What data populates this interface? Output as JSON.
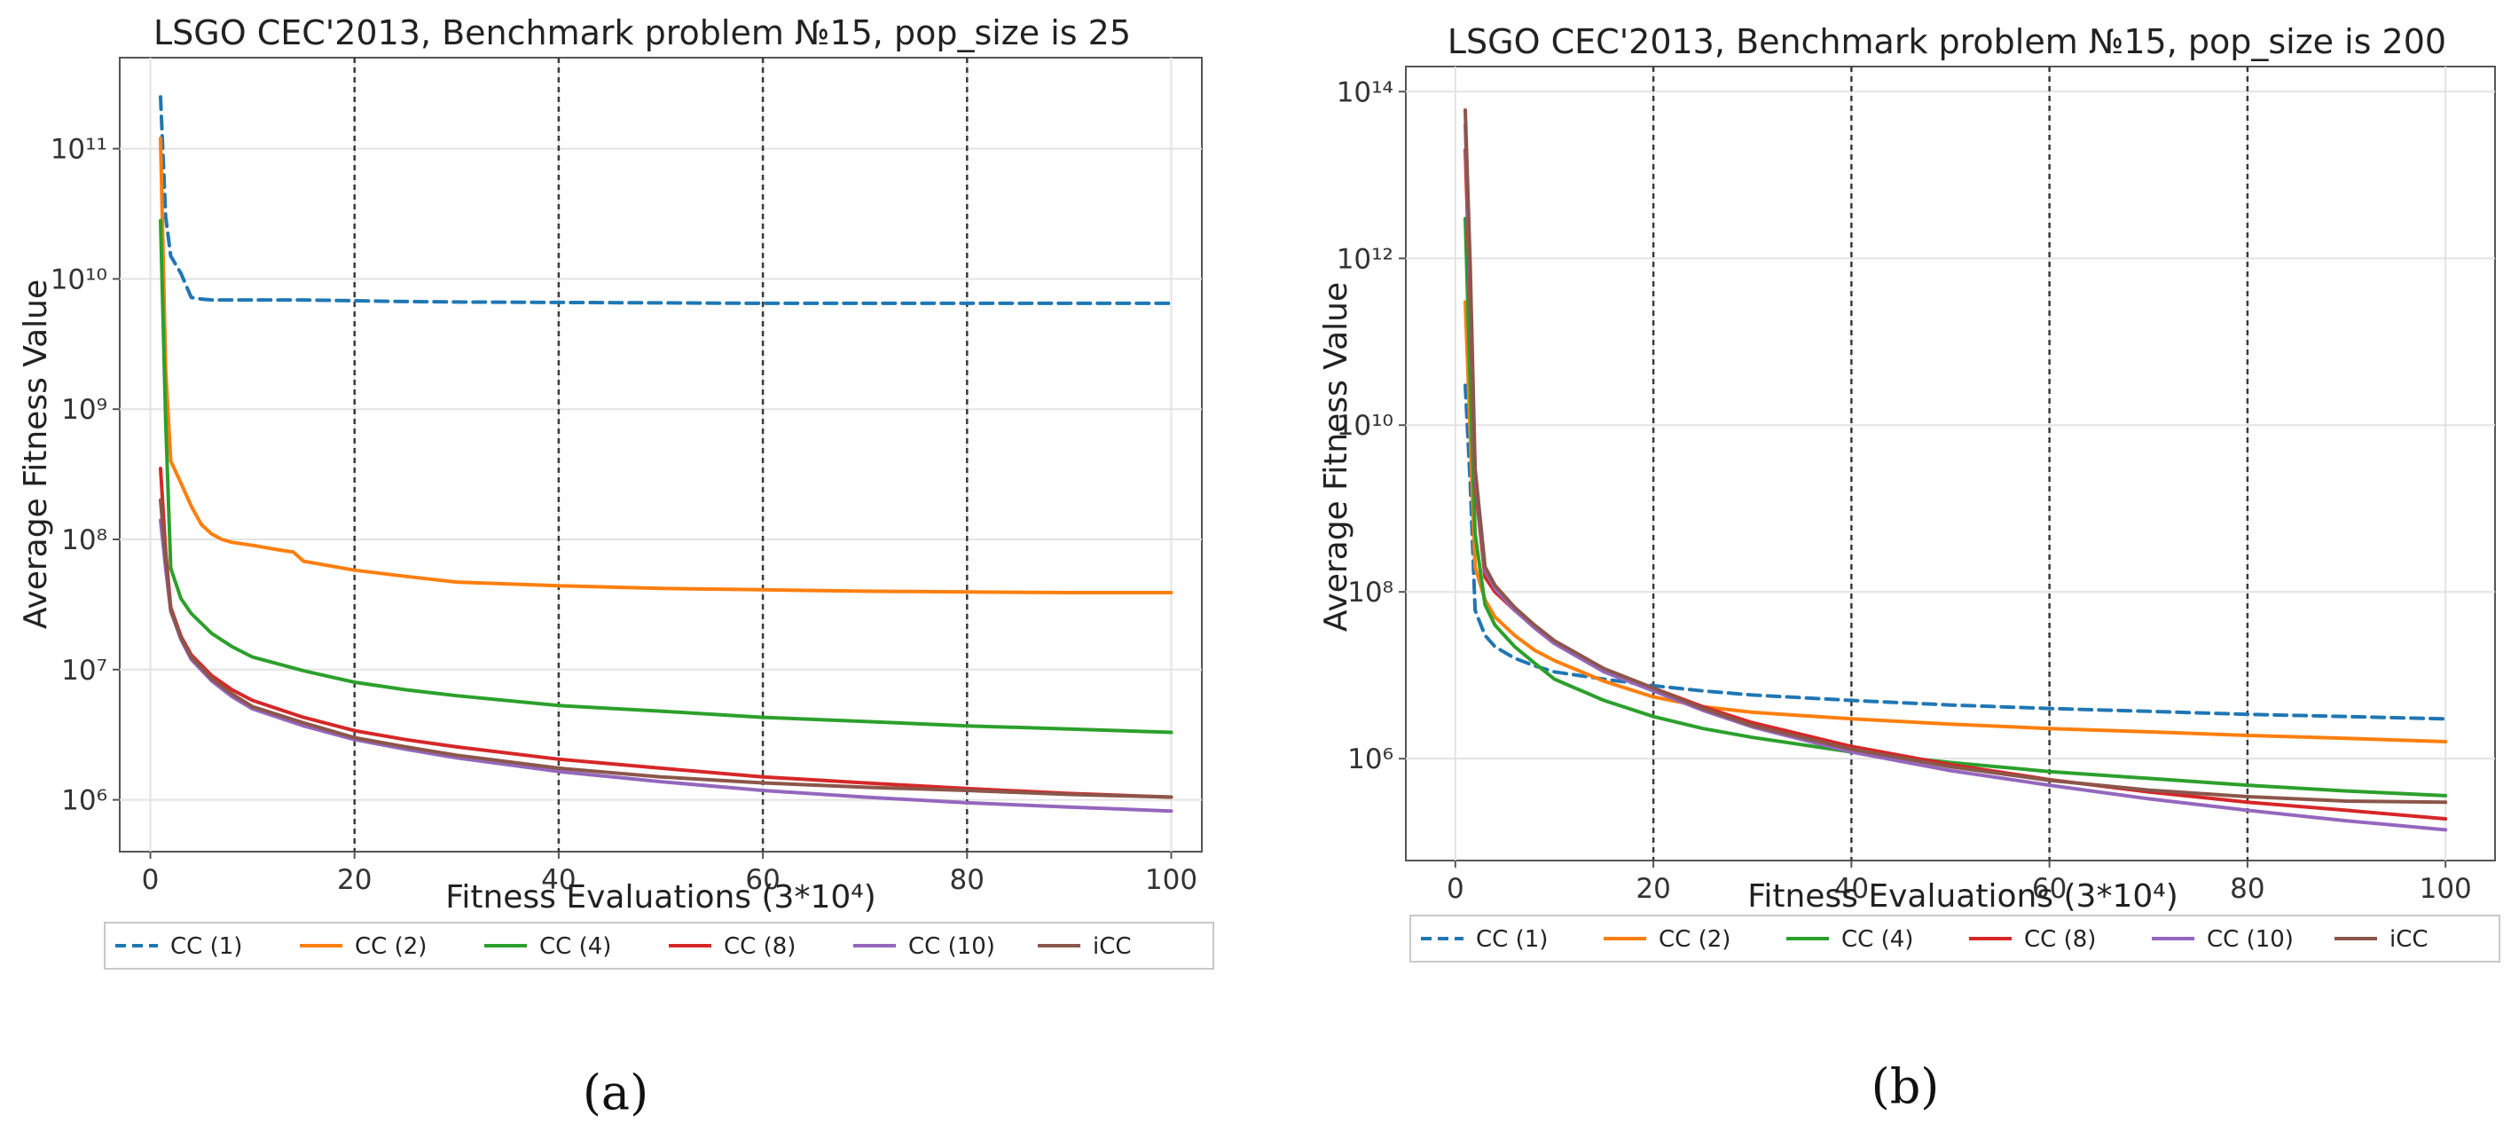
{
  "colors": {
    "CC (1)": "#1f77b4",
    "CC (2)": "#ff7f0e",
    "CC (4)": "#2ca02c",
    "CC (8)": "#d62728",
    "CC (10)": "#9467bd",
    "iCC": "#8c564b"
  },
  "chart_data": [
    {
      "type": "line",
      "panel_label": "(a)",
      "title": "LSGO CEC'2013, Benchmark problem №15, pop_size is 25",
      "xlabel": "Fitness Evaluations (3*10⁴)",
      "ylabel": "Average Fitness Value",
      "yscale": "log",
      "xlim": [
        -3,
        103
      ],
      "ylim": [
        400000,
        500000000000
      ],
      "xticks": [
        0,
        20,
        40,
        60,
        80,
        100
      ],
      "yticks": [
        {
          "exp": 6,
          "label": "10⁶"
        },
        {
          "exp": 7,
          "label": "10⁷"
        },
        {
          "exp": 8,
          "label": "10⁸"
        },
        {
          "exp": 9,
          "label": "10⁹"
        },
        {
          "exp": 10,
          "label": "10¹⁰"
        },
        {
          "exp": 11,
          "label": "10¹¹"
        }
      ],
      "vlines": [
        20,
        40,
        60,
        80
      ],
      "legend": [
        "CC (1)",
        "CC (2)",
        "CC (4)",
        "CC (8)",
        "CC (10)",
        "iCC"
      ],
      "legend_position": "below",
      "series": [
        {
          "name": "CC (1)",
          "style": "dashed",
          "x": [
            1,
            1.5,
            2,
            3,
            4,
            5,
            6,
            8,
            10,
            15,
            20,
            25,
            30,
            40,
            50,
            60,
            70,
            80,
            90,
            100
          ],
          "y": [
            250000000000,
            30000000000,
            15000000000,
            11000000000,
            7200000000,
            7000000000,
            6900000000,
            6900000000,
            6900000000,
            6900000000,
            6800000000,
            6700000000,
            6650000000,
            6600000000,
            6550000000,
            6500000000,
            6500000000,
            6500000000,
            6500000000,
            6500000000
          ]
        },
        {
          "name": "CC (2)",
          "style": "solid",
          "x": [
            1,
            1.5,
            2,
            3,
            4,
            5,
            6,
            7,
            8,
            10,
            13,
            14,
            15,
            20,
            25,
            30,
            40,
            50,
            60,
            70,
            80,
            90,
            100
          ],
          "y": [
            120000000000,
            2000000000,
            400000000,
            270000000,
            180000000,
            130000000,
            110000000,
            100000000,
            95000000,
            90000000,
            82000000,
            80000000,
            68000000,
            58000000,
            52000000,
            47000000,
            44000000,
            42000000,
            41000000,
            40000000,
            39500000,
            39000000,
            39000000
          ]
        },
        {
          "name": "CC (4)",
          "style": "solid",
          "x": [
            1,
            1.5,
            2,
            3,
            4,
            6,
            8,
            10,
            15,
            20,
            25,
            30,
            40,
            50,
            60,
            70,
            80,
            90,
            100
          ],
          "y": [
            28000000000,
            800000000,
            60000000,
            35000000,
            27000000,
            19000000,
            15000000,
            12500000,
            9800000,
            8000000,
            7000000,
            6300000,
            5300000,
            4800000,
            4300000,
            4000000,
            3700000,
            3500000,
            3300000
          ]
        },
        {
          "name": "CC (8)",
          "style": "solid",
          "x": [
            1,
            1.5,
            2,
            3,
            4,
            6,
            8,
            10,
            15,
            20,
            25,
            30,
            40,
            50,
            60,
            70,
            80,
            90,
            100
          ],
          "y": [
            350000000,
            80000000,
            30000000,
            18000000,
            13000000,
            9000000,
            7000000,
            5800000,
            4300000,
            3400000,
            2900000,
            2550000,
            2050000,
            1750000,
            1500000,
            1350000,
            1220000,
            1120000,
            1050000
          ]
        },
        {
          "name": "CC (10)",
          "style": "solid",
          "x": [
            1,
            1.5,
            2,
            3,
            4,
            6,
            8,
            10,
            15,
            20,
            25,
            30,
            40,
            50,
            60,
            70,
            80,
            90,
            100
          ],
          "y": [
            140000000,
            60000000,
            28000000,
            17000000,
            12000000,
            8200000,
            6200000,
            5000000,
            3700000,
            2900000,
            2450000,
            2100000,
            1650000,
            1380000,
            1180000,
            1050000,
            950000,
            880000,
            820000
          ]
        },
        {
          "name": "iCC",
          "style": "solid",
          "x": [
            1,
            1.5,
            2,
            3,
            4,
            6,
            8,
            10,
            15,
            20,
            25,
            30,
            40,
            50,
            60,
            70,
            80,
            90,
            100
          ],
          "y": [
            200000000,
            70000000,
            29000000,
            17500000,
            12500000,
            8500000,
            6500000,
            5200000,
            3900000,
            3000000,
            2550000,
            2200000,
            1750000,
            1500000,
            1350000,
            1250000,
            1180000,
            1100000,
            1050000
          ]
        }
      ]
    },
    {
      "type": "line",
      "panel_label": "(b)",
      "title": "LSGO CEC'2013, Benchmark problem №15, pop_size is 200",
      "xlabel": "Fitness Evaluations (3*10⁴)",
      "ylabel": "Average Fitness Value",
      "yscale": "log",
      "xlim": [
        -5,
        105
      ],
      "ylim": [
        60000,
        200000000000000
      ],
      "xticks": [
        0,
        20,
        40,
        60,
        80,
        100
      ],
      "yticks": [
        {
          "exp": 6,
          "label": "10⁶"
        },
        {
          "exp": 8,
          "label": "10⁸"
        },
        {
          "exp": 10,
          "label": "10¹⁰"
        },
        {
          "exp": 12,
          "label": "10¹²"
        },
        {
          "exp": 14,
          "label": "10¹⁴"
        }
      ],
      "vlines": [
        20,
        40,
        60,
        80
      ],
      "legend": [
        "CC (1)",
        "CC (2)",
        "CC (4)",
        "CC (8)",
        "CC (10)",
        "iCC"
      ],
      "legend_position": "below",
      "series": [
        {
          "name": "CC (1)",
          "style": "dashed",
          "x": [
            1,
            1.5,
            2,
            3,
            4,
            6,
            8,
            10,
            15,
            20,
            25,
            30,
            40,
            50,
            60,
            70,
            80,
            90,
            100
          ],
          "y": [
            30000000000,
            2000000000,
            60000000,
            30000000,
            22000000,
            16000000,
            13000000,
            11000000,
            9000000,
            7500000,
            6500000,
            5800000,
            5000000,
            4400000,
            4000000,
            3700000,
            3400000,
            3200000,
            3000000
          ]
        },
        {
          "name": "CC (2)",
          "style": "solid",
          "x": [
            1,
            1.5,
            2,
            3,
            4,
            6,
            8,
            10,
            15,
            20,
            25,
            30,
            40,
            50,
            60,
            70,
            80,
            90,
            100
          ],
          "y": [
            300000000000,
            8000000000,
            200000000,
            80000000,
            50000000,
            30000000,
            20000000,
            15000000,
            8500000,
            5500000,
            4200000,
            3600000,
            3000000,
            2600000,
            2300000,
            2100000,
            1900000,
            1750000,
            1600000
          ]
        },
        {
          "name": "CC (4)",
          "style": "solid",
          "x": [
            1,
            1.5,
            2,
            3,
            4,
            6,
            8,
            10,
            15,
            20,
            25,
            30,
            40,
            50,
            60,
            70,
            80,
            90,
            100
          ],
          "y": [
            3000000000000,
            30000000000,
            500000000,
            70000000,
            40000000,
            22000000,
            14000000,
            9000000,
            5000000,
            3200000,
            2300000,
            1800000,
            1200000,
            900000,
            700000,
            580000,
            480000,
            410000,
            360000
          ]
        },
        {
          "name": "CC (8)",
          "style": "solid",
          "x": [
            1,
            1.5,
            2,
            3,
            4,
            6,
            8,
            10,
            15,
            20,
            25,
            30,
            40,
            50,
            60,
            70,
            80,
            90,
            100
          ],
          "y": [
            20000000000000,
            300000000000,
            2000000000,
            150000000,
            100000000,
            60000000,
            38000000,
            25000000,
            12000000,
            7000000,
            4200000,
            2700000,
            1400000,
            850000,
            560000,
            400000,
            300000,
            240000,
            190000
          ]
        },
        {
          "name": "CC (10)",
          "style": "solid",
          "x": [
            1,
            1.5,
            2,
            3,
            4,
            6,
            8,
            10,
            15,
            20,
            25,
            30,
            40,
            50,
            60,
            70,
            80,
            90,
            100
          ],
          "y": [
            40000000000000,
            500000000000,
            2500000000,
            180000000,
            110000000,
            60000000,
            37000000,
            24000000,
            11000000,
            6500000,
            3800000,
            2400000,
            1200000,
            720000,
            480000,
            330000,
            240000,
            180000,
            140000
          ]
        },
        {
          "name": "iCC",
          "style": "solid",
          "x": [
            1,
            1.5,
            2,
            3,
            4,
            6,
            8,
            10,
            15,
            20,
            25,
            30,
            40,
            50,
            60,
            70,
            80,
            90,
            100
          ],
          "y": [
            60000000000000,
            800000000000,
            3000000000,
            200000000,
            120000000,
            65000000,
            40000000,
            26000000,
            12000000,
            7000000,
            4000000,
            2500000,
            1300000,
            800000,
            550000,
            420000,
            350000,
            310000,
            300000
          ]
        }
      ]
    }
  ]
}
